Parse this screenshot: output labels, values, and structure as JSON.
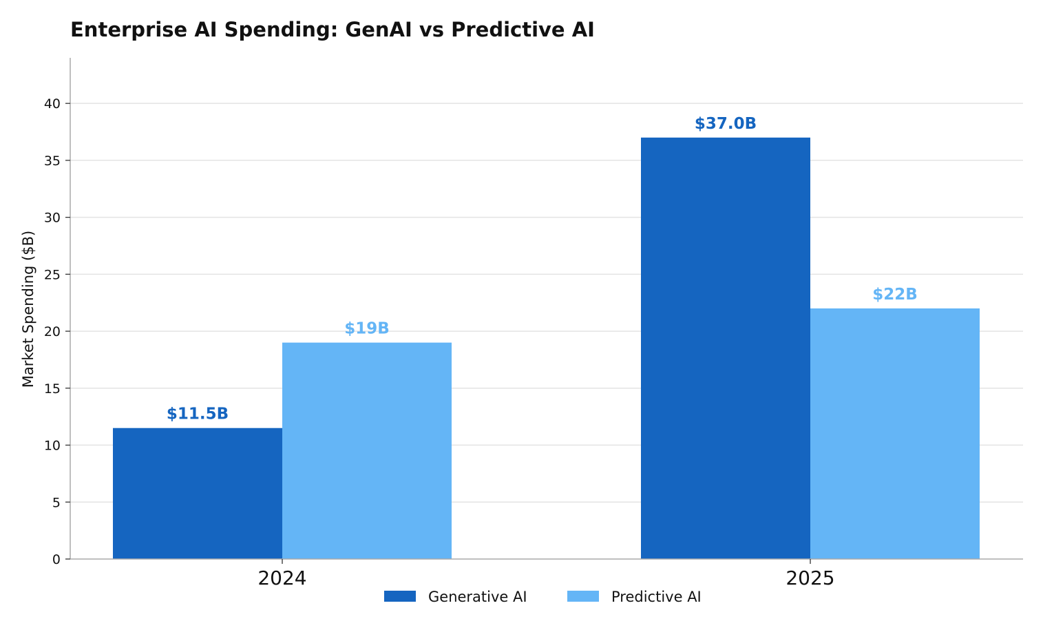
{
  "chart_data": {
    "type": "bar",
    "title": "Enterprise AI Spending: GenAI vs Predictive AI",
    "xlabel": "",
    "ylabel": "Market Spending ($B)",
    "categories": [
      "2024",
      "2025"
    ],
    "ylim": [
      0,
      44
    ],
    "yticks": [
      0,
      5,
      10,
      15,
      20,
      25,
      30,
      35,
      40
    ],
    "grid": true,
    "legend_position": "bottom-center",
    "series": [
      {
        "name": "Generative AI",
        "color": "#1565c0",
        "values": [
          11.5,
          37.0
        ],
        "labels": [
          "$11.5B",
          "$37.0B"
        ]
      },
      {
        "name": "Predictive AI",
        "color": "#64b5f6",
        "values": [
          19,
          22
        ],
        "labels": [
          "$19B",
          "$22B"
        ]
      }
    ]
  }
}
